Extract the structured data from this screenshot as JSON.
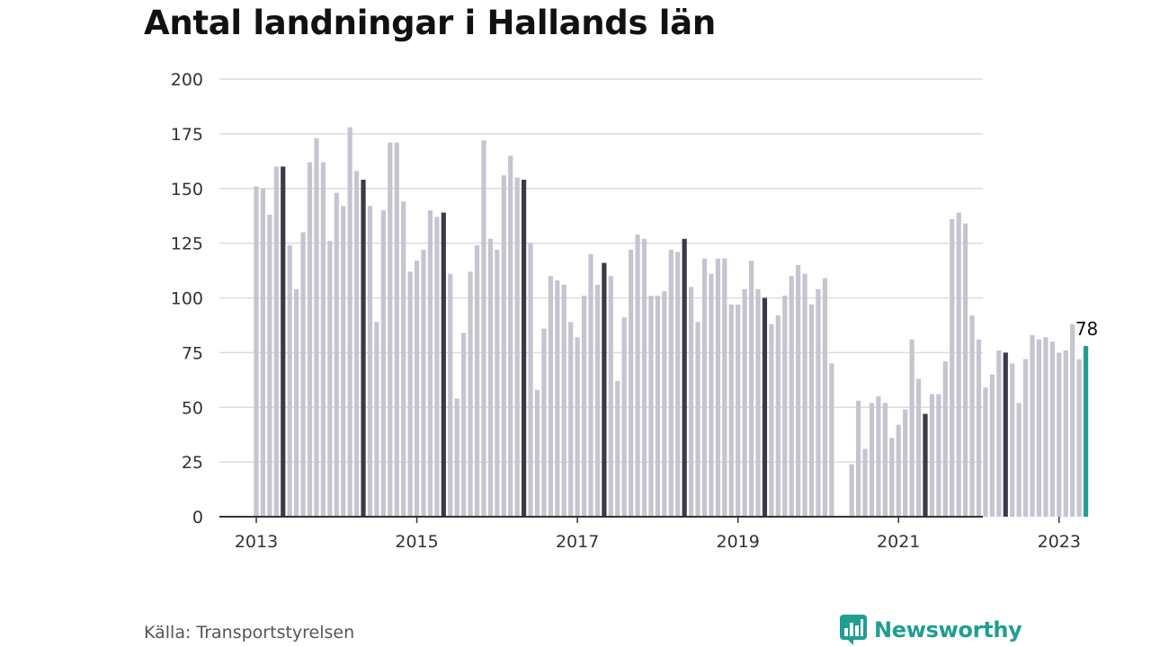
{
  "title": "Antal landningar i Hallands län",
  "source": "Källa: Transportstyrelsen",
  "brand": {
    "name": "Newsworthy",
    "icon": "newsworthy-logo-icon",
    "color": "#1f9e92"
  },
  "colors": {
    "bar": "#c5c5cf",
    "may_bar": "#3a3a48",
    "latest_bar": "#1f9e92",
    "grid": "#dcdce0",
    "axis": "#333333"
  },
  "chart_data": {
    "type": "bar",
    "title": "Antal landningar i Hallands län",
    "xlabel": "",
    "ylabel": "",
    "ylim": [
      0,
      200
    ],
    "y_ticks": [
      "0",
      "25",
      "50",
      "75",
      "100",
      "125",
      "150",
      "175",
      "200"
    ],
    "x_ticks": [
      "2013",
      "2015",
      "2017",
      "2019",
      "2021",
      "2023"
    ],
    "highlight": "May of each year dark; latest month teal with value label",
    "series": [
      {
        "years": [
          2013,
          2014,
          2015,
          2016,
          2017,
          2018,
          2019,
          2020,
          2021,
          2022,
          2023
        ],
        "monthly_values": [
          [
            151,
            150,
            138,
            160,
            160,
            124,
            104,
            130,
            162,
            173,
            162,
            126
          ],
          [
            148,
            142,
            178,
            158,
            154,
            142,
            89,
            140,
            171,
            171,
            144,
            112
          ],
          [
            117,
            122,
            140,
            137,
            139,
            111,
            54,
            84,
            112,
            124,
            172,
            127
          ],
          [
            122,
            156,
            165,
            155,
            154,
            125,
            58,
            86,
            110,
            108,
            106,
            89
          ],
          [
            82,
            101,
            120,
            106,
            116,
            110,
            62,
            91,
            122,
            129,
            127,
            101
          ],
          [
            101,
            103,
            122,
            121,
            127,
            105,
            89,
            118,
            111,
            118,
            118,
            97
          ],
          [
            97,
            104,
            117,
            104,
            100,
            88,
            92,
            101,
            110,
            115,
            111,
            97
          ],
          [
            104,
            109,
            70,
            null,
            null,
            24,
            53,
            31,
            52,
            55,
            52,
            36
          ],
          [
            42,
            49,
            81,
            63,
            47,
            56,
            56,
            71,
            136,
            139,
            134,
            92
          ],
          [
            81,
            59,
            65,
            76,
            75,
            70,
            52,
            72,
            83,
            81,
            82,
            80
          ],
          [
            75,
            76,
            88,
            72,
            78
          ]
        ]
      }
    ],
    "latest_label": "78"
  }
}
